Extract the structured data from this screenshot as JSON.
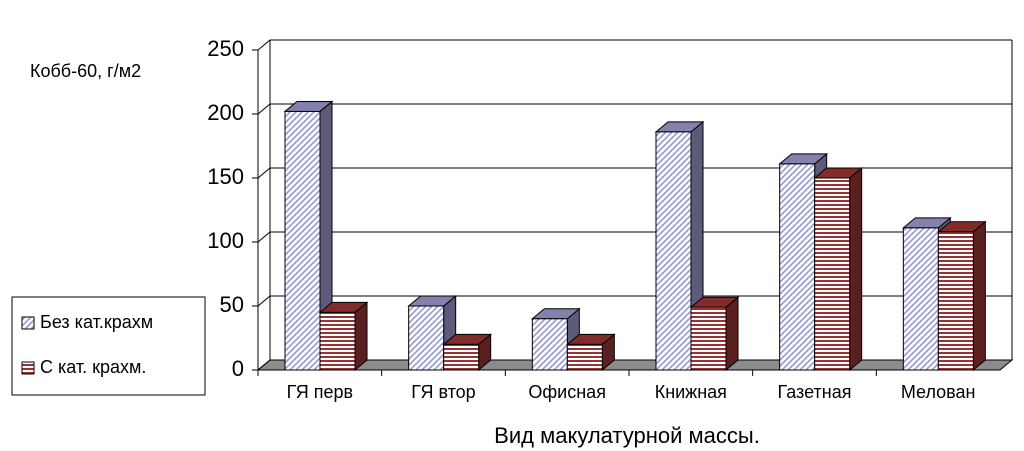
{
  "chart_data": {
    "type": "bar3d",
    "y_label": "Кобб-60, г/м2",
    "x_label": "Вид макулатурной массы.",
    "categories": [
      "ГЯ перв",
      "ГЯ втор",
      "Офисная",
      "Книжная",
      "Газетная",
      "Мелован"
    ],
    "series": [
      {
        "name": "Без кат.крахм",
        "color": "#9999cc",
        "values": [
          202,
          50,
          40,
          186,
          161,
          111
        ]
      },
      {
        "name": "С кат. крахм.",
        "color": "#993333",
        "values": [
          45,
          20,
          20,
          49,
          150,
          108
        ]
      }
    ],
    "ylim": [
      0,
      250
    ],
    "yticks": [
      0,
      50,
      100,
      150,
      200,
      250
    ],
    "grid": true,
    "legend": "left"
  }
}
